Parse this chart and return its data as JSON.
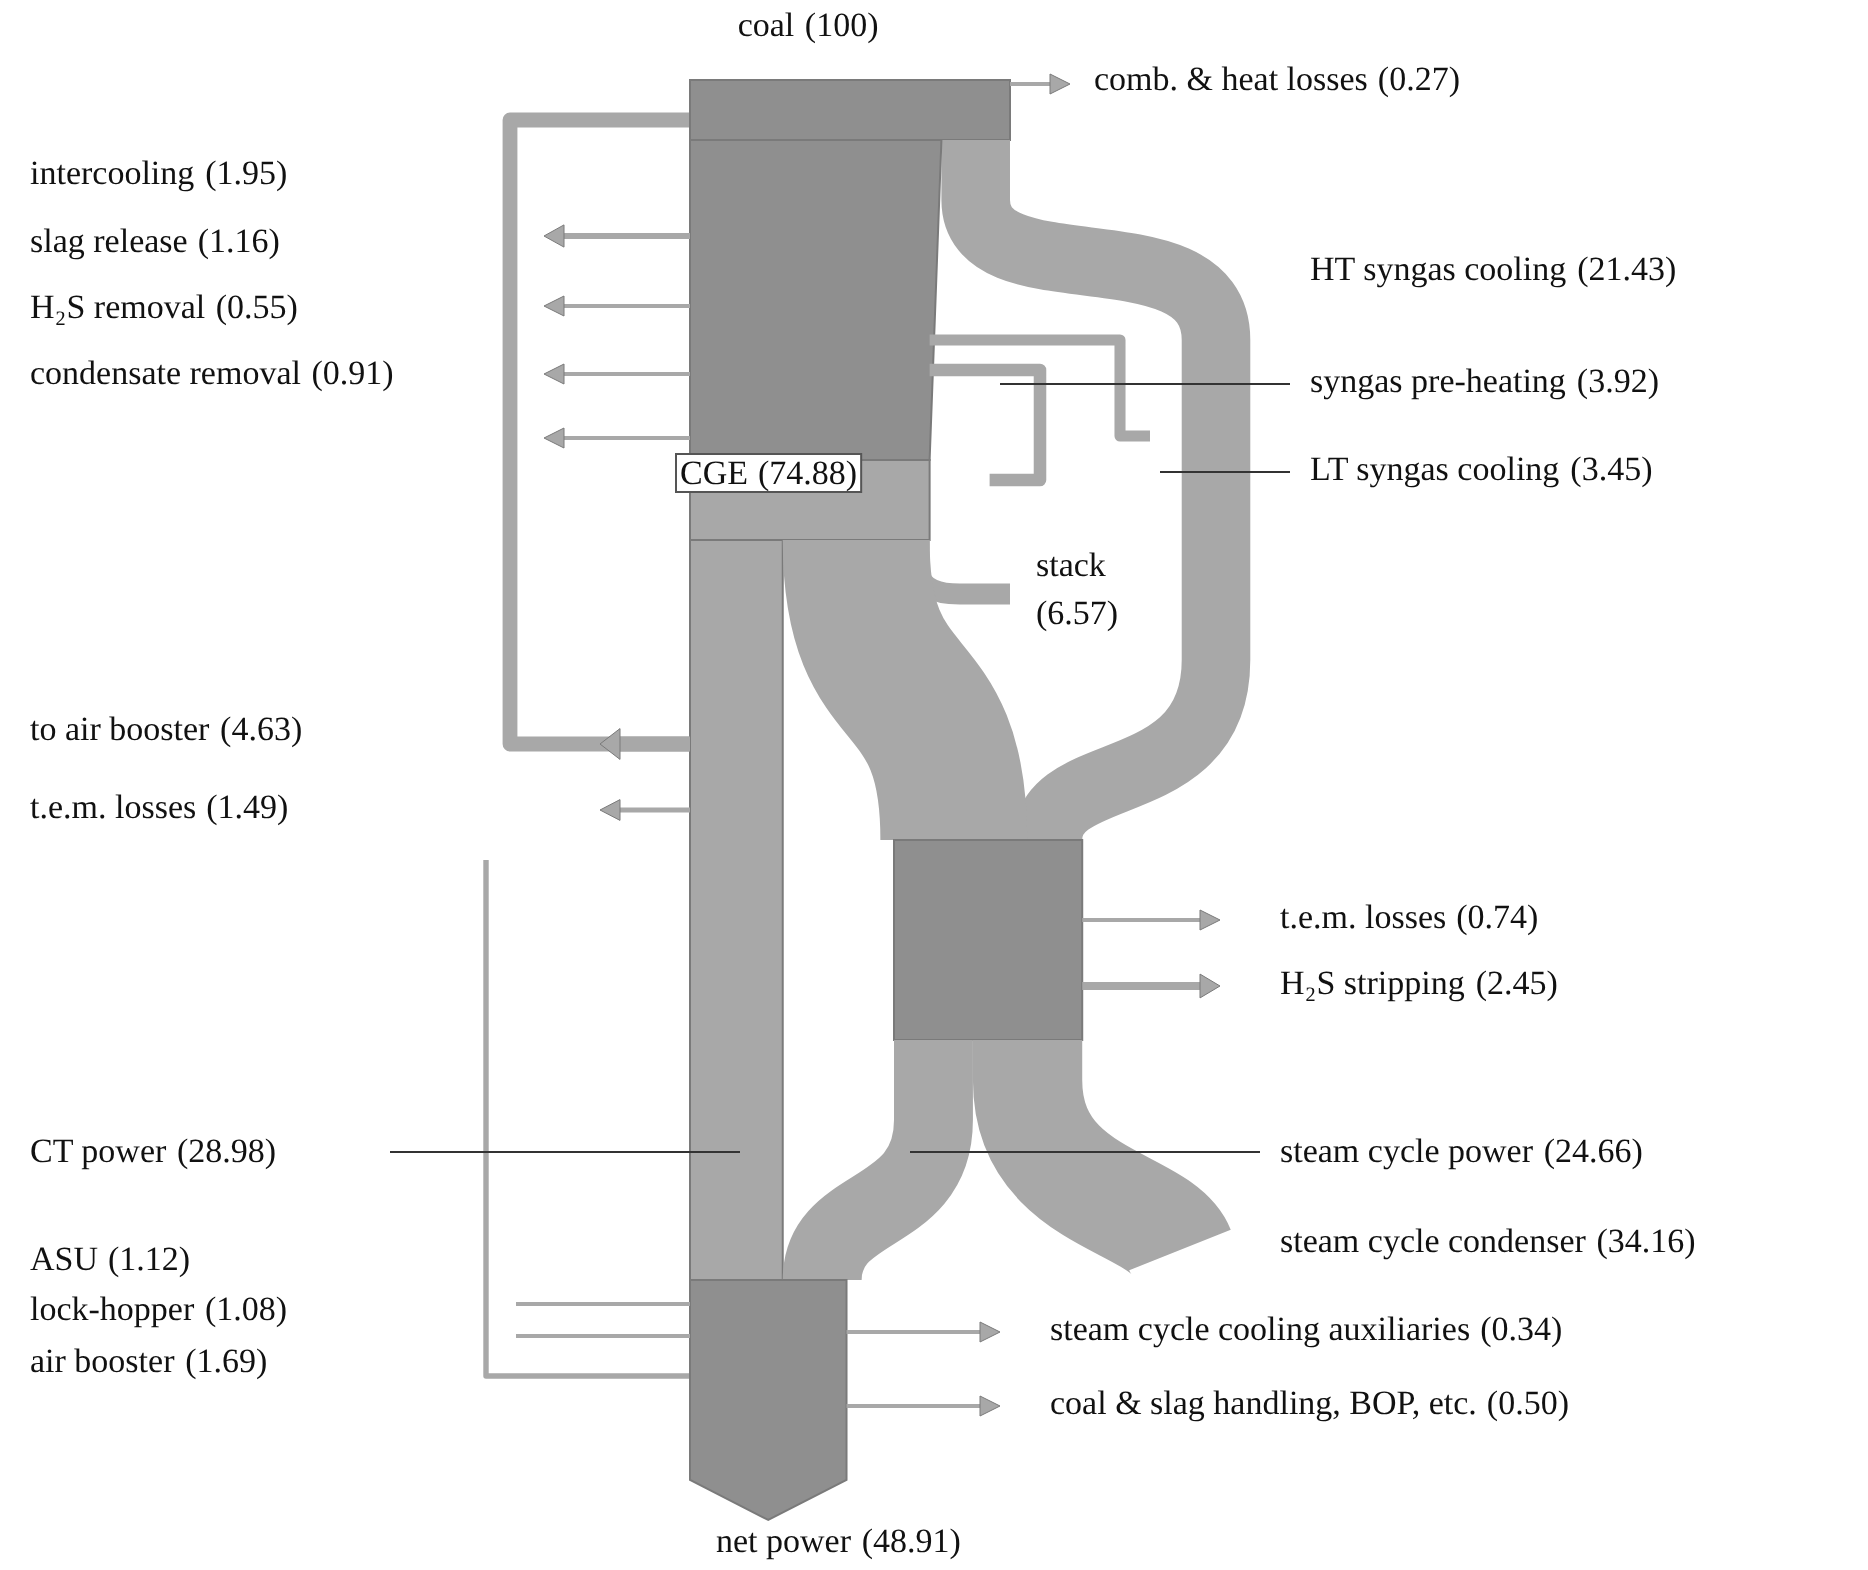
{
  "chart_data": {
    "type": "other",
    "categories": [
      "coal",
      "comb. & heat losses",
      "intercooling",
      "slag release",
      "H₂S removal",
      "condensate removal",
      "CGE",
      "HT syngas cooling",
      "syngas pre-heating",
      "LT syngas cooling",
      "stack",
      "to air booster",
      "t.e.m. losses",
      "t.e.m. losses",
      "H₂S stripping",
      "CT power",
      "steam cycle power",
      "steam cycle condenser",
      "ASU",
      "lock-hopper",
      "air booster",
      "steam cycle cooling auxiliaries",
      "coal & slag handling, BOP, etc.",
      "net power"
    ],
    "values": [
      100,
      0.27,
      1.95,
      1.16,
      0.55,
      0.91,
      74.88,
      21.43,
      3.92,
      3.45,
      6.57,
      4.63,
      1.49,
      0.74,
      2.45,
      28.98,
      24.66,
      34.16,
      1.12,
      1.08,
      1.69,
      0.34,
      0.5,
      48.91
    ],
    "value_labels": [
      "(100)",
      "(0.27)",
      "(1.95)",
      "(1.16)",
      "(0.55)",
      "(0.91)",
      "(74.88)",
      "(21.43)",
      "(3.92)",
      "(3.45)",
      "(6.57)",
      "(4.63)",
      "(1.49)",
      "(0.74)",
      "(2.45)",
      "(28.98)",
      "(24.66)",
      "(34.16)",
      "(1.12)",
      "(1.08)",
      "(1.69)",
      "(0.34)",
      "(0.50)",
      "(48.91)"
    ]
  }
}
